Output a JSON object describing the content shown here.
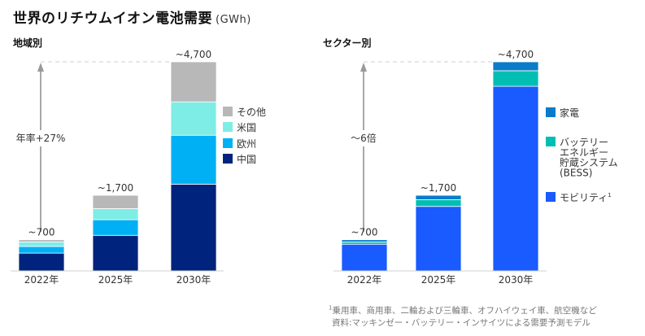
{
  "title": "世界のリチウムイオン電池需要",
  "unit": "(GWh)",
  "chart_data": [
    {
      "type": "bar",
      "stacked": true,
      "title": "地域別",
      "categories": [
        "2022年",
        "2025年",
        "2030年"
      ],
      "totals_labels": [
        "~700",
        "~1,700",
        "~4,700"
      ],
      "totals": [
        700,
        1700,
        4700
      ],
      "series": [
        {
          "name": "中国",
          "color": "#00247D",
          "values": [
            400,
            800,
            1950
          ]
        },
        {
          "name": "欧州",
          "color": "#00B0F5",
          "values": [
            150,
            350,
            1100
          ]
        },
        {
          "name": "米国",
          "color": "#7EEDE6",
          "values": [
            100,
            250,
            750
          ]
        },
        {
          "name": "その他",
          "color": "#B8B8B8",
          "values": [
            50,
            300,
            900
          ]
        }
      ],
      "legend_order": [
        "その他",
        "米国",
        "欧州",
        "中国"
      ],
      "annotation": "年率+27%",
      "ylim": [
        0,
        4700
      ],
      "grid": false,
      "legend": "right"
    },
    {
      "type": "bar",
      "stacked": true,
      "title": "セクター別",
      "categories": [
        "2022年",
        "2025年",
        "2030年"
      ],
      "totals_labels": [
        "~700",
        "~1,700",
        "~4,700"
      ],
      "totals": [
        700,
        1700,
        4700
      ],
      "series": [
        {
          "name": "モビリティ",
          "sup": "1",
          "color": "#1A5BFF",
          "values": [
            600,
            1450,
            4150
          ]
        },
        {
          "name": "バッテリーエネルギー貯蔵システム (BESS)",
          "label_lines": [
            "バッテリー",
            "エネルギー",
            "貯蔵システム",
            "(BESS)"
          ],
          "color": "#00BFB2",
          "values": [
            50,
            150,
            350
          ]
        },
        {
          "name": "家電",
          "color": "#0A7CC9",
          "values": [
            50,
            100,
            200
          ]
        }
      ],
      "legend_order": [
        "家電",
        "バッテリーエネルギー貯蔵システム (BESS)",
        "モビリティ"
      ],
      "annotation": "～6倍",
      "ylim": [
        0,
        4700
      ],
      "grid": false,
      "legend": "right"
    }
  ],
  "footnotes": {
    "note1_sup": "1",
    "note1": "乗用車、商用車、二輪および三輪車、オフハイウェイ車、航空機など",
    "source": "資料:マッキンゼー・バッテリー・インサイツによる需要予測モデル"
  }
}
